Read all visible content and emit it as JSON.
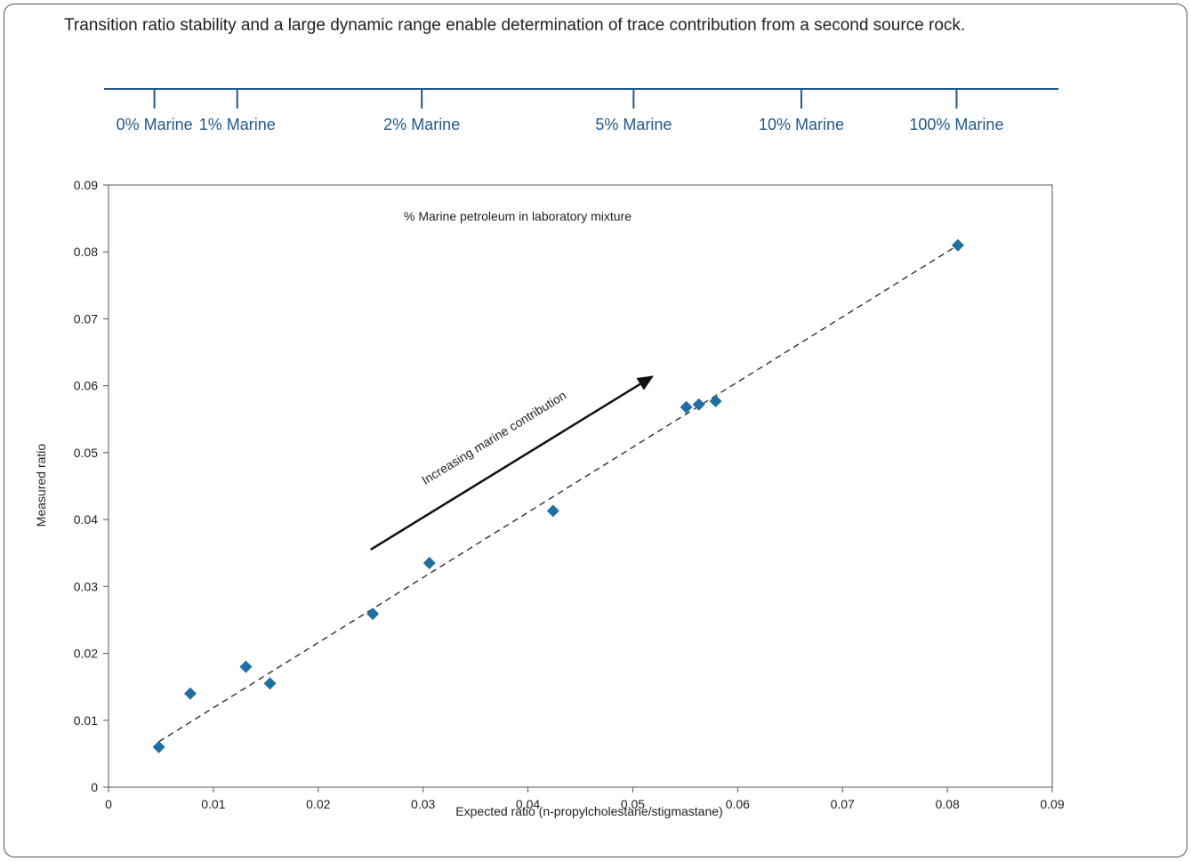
{
  "caption": "Transition ratio stability and a large dynamic range enable determination of trace contribution from a second source rock.",
  "scale_bar": {
    "color": "#1f5a8b",
    "labels": [
      "0% Marine",
      "1% Marine",
      "2% Marine",
      "5% Marine",
      "10% Marine",
      "100% Marine"
    ],
    "tick_values": [
      0.0048,
      0.0127,
      0.0303,
      0.0505,
      0.0665,
      0.0813
    ]
  },
  "chart_data": {
    "type": "scatter",
    "title": "",
    "annotation": "% Marine petroleum in laboratory mixture",
    "arrow_label": "Increasing marine contribution",
    "arrow": {
      "from": [
        0.025,
        0.0355
      ],
      "to": [
        0.052,
        0.0615
      ]
    },
    "xlabel": "Expected ratio (n-propylcholestane/stigmastane)",
    "ylabel": "Measured ratio",
    "xlim": [
      0,
      0.09
    ],
    "ylim": [
      0,
      0.09
    ],
    "xticks": [
      "0",
      "0.01",
      "0.02",
      "0.03",
      "0.04",
      "0.05",
      "0.06",
      "0.07",
      "0.08",
      "0.09"
    ],
    "yticks": [
      "0",
      "0.01",
      "0.02",
      "0.03",
      "0.04",
      "0.05",
      "0.06",
      "0.07",
      "0.08",
      "0.09"
    ],
    "marker_color": "#1f6fa3",
    "points": [
      {
        "x": 0.0048,
        "y": 0.006
      },
      {
        "x": 0.0078,
        "y": 0.014
      },
      {
        "x": 0.0131,
        "y": 0.018
      },
      {
        "x": 0.0154,
        "y": 0.0155
      },
      {
        "x": 0.0252,
        "y": 0.0259
      },
      {
        "x": 0.0306,
        "y": 0.0335
      },
      {
        "x": 0.0424,
        "y": 0.0413
      },
      {
        "x": 0.0551,
        "y": 0.0568
      },
      {
        "x": 0.0563,
        "y": 0.0572
      },
      {
        "x": 0.0579,
        "y": 0.0577
      },
      {
        "x": 0.081,
        "y": 0.081
      }
    ],
    "trendline": {
      "style": "dashed",
      "from": [
        0.0048,
        0.0068
      ],
      "to": [
        0.081,
        0.081
      ]
    },
    "grid": false,
    "legend": "none"
  }
}
